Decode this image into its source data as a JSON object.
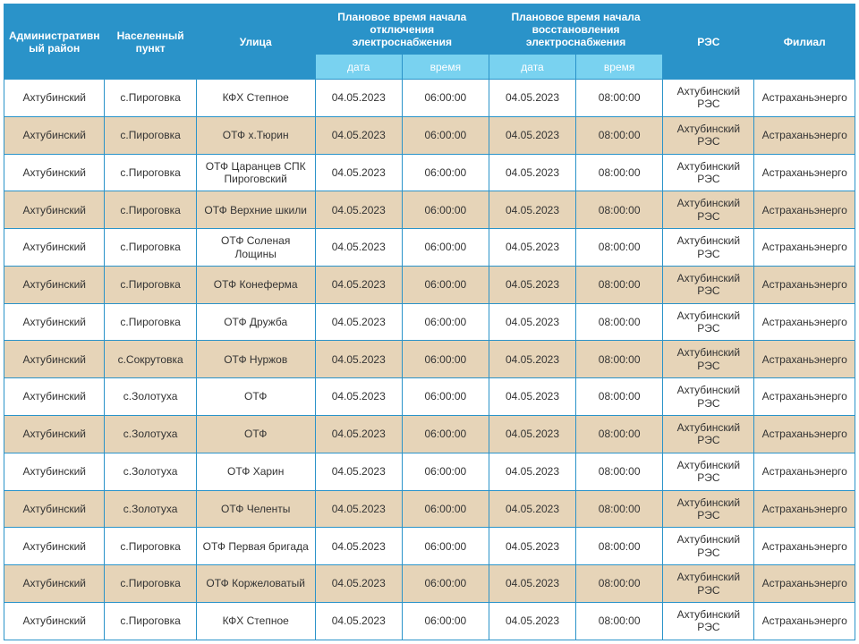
{
  "table": {
    "header": {
      "district": "Административный район",
      "settlement": "Населенный пункт",
      "street": "Улица",
      "outage_start": "Плановое время начала отключения электроснабжения",
      "outage_restore": "Плановое время начала восстановления электроснабжения",
      "res": "РЭС",
      "branch": "Филиал",
      "sub_date": "дата",
      "sub_time": "время"
    },
    "colors": {
      "header_bg": "#2a93c9",
      "header_fg": "#ffffff",
      "subheader_bg": "#79d2f0",
      "subheader_fg": "#ffffff",
      "row_odd_bg": "#ffffff",
      "row_even_bg": "#e6d4b8",
      "border": "#2a93c9"
    },
    "rows": [
      {
        "district": "Ахтубинский",
        "settlement": "с.Пироговка",
        "street": "КФХ Степное",
        "start_date": "04.05.2023",
        "start_time": "06:00:00",
        "end_date": "04.05.2023",
        "end_time": "08:00:00",
        "res": "Ахтубинский РЭС",
        "branch": "Астраханьэнерго"
      },
      {
        "district": "Ахтубинский",
        "settlement": "с.Пироговка",
        "street": "ОТФ х.Тюрин",
        "start_date": "04.05.2023",
        "start_time": "06:00:00",
        "end_date": "04.05.2023",
        "end_time": "08:00:00",
        "res": "Ахтубинский РЭС",
        "branch": "Астраханьэнерго"
      },
      {
        "district": "Ахтубинский",
        "settlement": "с.Пироговка",
        "street": "ОТФ Царанцев СПК Пироговский",
        "start_date": "04.05.2023",
        "start_time": "06:00:00",
        "end_date": "04.05.2023",
        "end_time": "08:00:00",
        "res": "Ахтубинский РЭС",
        "branch": "Астраханьэнерго"
      },
      {
        "district": "Ахтубинский",
        "settlement": "с.Пироговка",
        "street": "ОТФ Верхние шкили",
        "start_date": "04.05.2023",
        "start_time": "06:00:00",
        "end_date": "04.05.2023",
        "end_time": "08:00:00",
        "res": "Ахтубинский РЭС",
        "branch": "Астраханьэнерго"
      },
      {
        "district": "Ахтубинский",
        "settlement": "с.Пироговка",
        "street": "ОТФ Соленая Лощины",
        "start_date": "04.05.2023",
        "start_time": "06:00:00",
        "end_date": "04.05.2023",
        "end_time": "08:00:00",
        "res": "Ахтубинский РЭС",
        "branch": "Астраханьэнерго"
      },
      {
        "district": "Ахтубинский",
        "settlement": "с.Пироговка",
        "street": "ОТФ Конеферма",
        "start_date": "04.05.2023",
        "start_time": "06:00:00",
        "end_date": "04.05.2023",
        "end_time": "08:00:00",
        "res": "Ахтубинский РЭС",
        "branch": "Астраханьэнерго"
      },
      {
        "district": "Ахтубинский",
        "settlement": "с.Пироговка",
        "street": "ОТФ Дружба",
        "start_date": "04.05.2023",
        "start_time": "06:00:00",
        "end_date": "04.05.2023",
        "end_time": "08:00:00",
        "res": "Ахтубинский РЭС",
        "branch": "Астраханьэнерго"
      },
      {
        "district": "Ахтубинский",
        "settlement": "с.Сокрутовка",
        "street": "ОТФ Нуржов",
        "start_date": "04.05.2023",
        "start_time": "06:00:00",
        "end_date": "04.05.2023",
        "end_time": "08:00:00",
        "res": "Ахтубинский РЭС",
        "branch": "Астраханьэнерго"
      },
      {
        "district": "Ахтубинский",
        "settlement": "с.Золотуха",
        "street": "ОТФ",
        "start_date": "04.05.2023",
        "start_time": "06:00:00",
        "end_date": "04.05.2023",
        "end_time": "08:00:00",
        "res": "Ахтубинский РЭС",
        "branch": "Астраханьэнерго"
      },
      {
        "district": "Ахтубинский",
        "settlement": "с.Золотуха",
        "street": "ОТФ",
        "start_date": "04.05.2023",
        "start_time": "06:00:00",
        "end_date": "04.05.2023",
        "end_time": "08:00:00",
        "res": "Ахтубинский РЭС",
        "branch": "Астраханьэнерго"
      },
      {
        "district": "Ахтубинский",
        "settlement": "с.Золотуха",
        "street": "ОТФ Харин",
        "start_date": "04.05.2023",
        "start_time": "06:00:00",
        "end_date": "04.05.2023",
        "end_time": "08:00:00",
        "res": "Ахтубинский РЭС",
        "branch": "Астраханьэнерго"
      },
      {
        "district": "Ахтубинский",
        "settlement": "с.Золотуха",
        "street": "ОТФ Челенты",
        "start_date": "04.05.2023",
        "start_time": "06:00:00",
        "end_date": "04.05.2023",
        "end_time": "08:00:00",
        "res": "Ахтубинский РЭС",
        "branch": "Астраханьэнерго"
      },
      {
        "district": "Ахтубинский",
        "settlement": "с.Пироговка",
        "street": "ОТФ Первая бригада",
        "start_date": "04.05.2023",
        "start_time": "06:00:00",
        "end_date": "04.05.2023",
        "end_time": "08:00:00",
        "res": "Ахтубинский РЭС",
        "branch": "Астраханьэнерго"
      },
      {
        "district": "Ахтубинский",
        "settlement": "с.Пироговка",
        "street": "ОТФ Коржеловатый",
        "start_date": "04.05.2023",
        "start_time": "06:00:00",
        "end_date": "04.05.2023",
        "end_time": "08:00:00",
        "res": "Ахтубинский РЭС",
        "branch": "Астраханьэнерго"
      },
      {
        "district": "Ахтубинский",
        "settlement": "с.Пироговка",
        "street": "КФХ Степное",
        "start_date": "04.05.2023",
        "start_time": "06:00:00",
        "end_date": "04.05.2023",
        "end_time": "08:00:00",
        "res": "Ахтубинский РЭС",
        "branch": "Астраханьэнерго"
      }
    ]
  }
}
